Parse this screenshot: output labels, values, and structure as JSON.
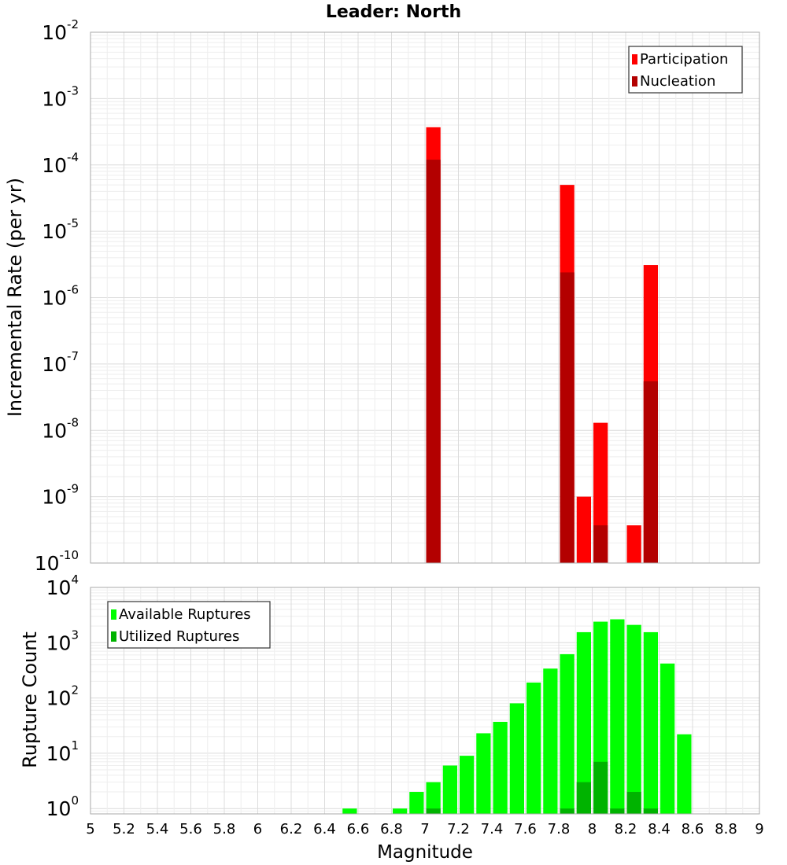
{
  "chart_data": [
    {
      "type": "bar",
      "title": "Leader: North",
      "xlabel": "",
      "ylabel": "Incremental Rate (per yr)",
      "yscale": "log",
      "xlim": [
        5,
        9
      ],
      "ylim": [
        1e-10,
        0.01
      ],
      "y_tick_exponents": [
        "-10",
        "-9",
        "-8",
        "-7",
        "-6",
        "-5",
        "-4",
        "-3",
        "-2"
      ],
      "grid": true,
      "legend_position": "top-right",
      "series": [
        {
          "name": "Participation",
          "color": "#FF0000",
          "points": [
            {
              "x": 7.05,
              "y": 0.00037
            },
            {
              "x": 7.85,
              "y": 5e-05
            },
            {
              "x": 7.95,
              "y": 1e-09
            },
            {
              "x": 8.05,
              "y": 1.3e-08
            },
            {
              "x": 8.25,
              "y": 3.7e-10
            },
            {
              "x": 8.35,
              "y": 3.1e-06
            }
          ]
        },
        {
          "name": "Nucleation",
          "color": "#B30000",
          "points": [
            {
              "x": 7.05,
              "y": 0.00012
            },
            {
              "x": 7.85,
              "y": 2.4e-06
            },
            {
              "x": 8.05,
              "y": 3.7e-10
            },
            {
              "x": 8.35,
              "y": 5.5e-08
            }
          ]
        }
      ]
    },
    {
      "type": "bar",
      "title": "",
      "xlabel": "Magnitude",
      "ylabel": "Rupture Count",
      "yscale": "log",
      "xlim": [
        5,
        9
      ],
      "ylim": [
        0.8,
        10000
      ],
      "y_tick_exponents": [
        "0",
        "1",
        "2",
        "3",
        "4"
      ],
      "x_ticks": [
        "5",
        "5.2",
        "5.4",
        "5.6",
        "5.8",
        "6",
        "6.2",
        "6.4",
        "6.6",
        "6.8",
        "7",
        "7.2",
        "7.4",
        "7.6",
        "7.8",
        "8",
        "8.2",
        "8.4",
        "8.6",
        "8.8",
        "9"
      ],
      "grid": true,
      "legend_position": "top-left",
      "series": [
        {
          "name": "Available Ruptures",
          "color": "#00FF00",
          "points": [
            {
              "x": 6.55,
              "y": 1
            },
            {
              "x": 6.85,
              "y": 1
            },
            {
              "x": 6.95,
              "y": 2
            },
            {
              "x": 7.05,
              "y": 3
            },
            {
              "x": 7.15,
              "y": 6
            },
            {
              "x": 7.25,
              "y": 9
            },
            {
              "x": 7.35,
              "y": 23
            },
            {
              "x": 7.45,
              "y": 37
            },
            {
              "x": 7.55,
              "y": 80
            },
            {
              "x": 7.65,
              "y": 190
            },
            {
              "x": 7.75,
              "y": 340
            },
            {
              "x": 7.85,
              "y": 620
            },
            {
              "x": 7.95,
              "y": 1550
            },
            {
              "x": 8.05,
              "y": 2400
            },
            {
              "x": 8.15,
              "y": 2650
            },
            {
              "x": 8.25,
              "y": 2100
            },
            {
              "x": 8.35,
              "y": 1550
            },
            {
              "x": 8.45,
              "y": 420
            },
            {
              "x": 8.55,
              "y": 22
            }
          ]
        },
        {
          "name": "Utilized Ruptures",
          "color": "#00B300",
          "points": [
            {
              "x": 7.05,
              "y": 1
            },
            {
              "x": 7.85,
              "y": 1
            },
            {
              "x": 7.95,
              "y": 3
            },
            {
              "x": 8.05,
              "y": 7
            },
            {
              "x": 8.15,
              "y": 1
            },
            {
              "x": 8.25,
              "y": 2
            },
            {
              "x": 8.35,
              "y": 1
            }
          ]
        }
      ]
    }
  ]
}
